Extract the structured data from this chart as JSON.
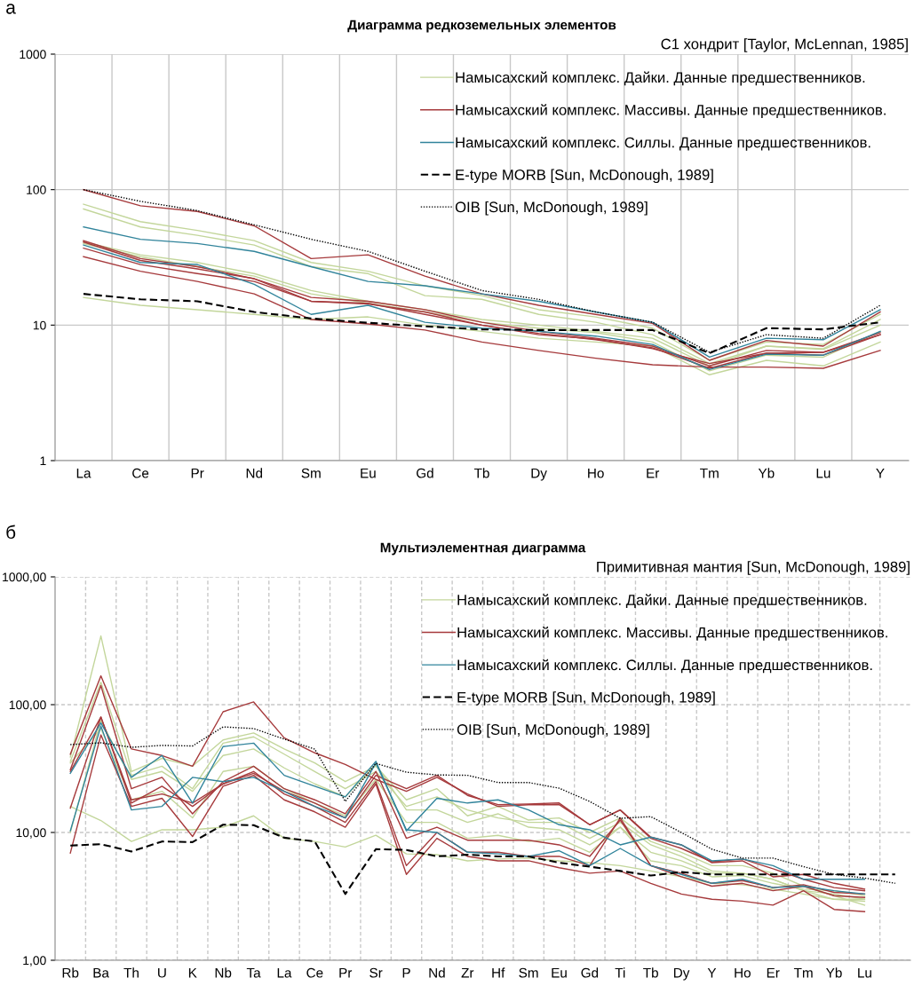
{
  "chart_data": [
    {
      "type": "line",
      "title": "Диаграмма редкоземельных элементов",
      "subtitle": "С1 хондрит [Taylor, McLennan, 1985]",
      "annotations": [
        "а"
      ],
      "categories": [
        "La",
        "Ce",
        "Pr",
        "Nd",
        "Sm",
        "Eu",
        "Gd",
        "Tb",
        "Dy",
        "Ho",
        "Er",
        "Tm",
        "Yb",
        "Lu",
        "Y"
      ],
      "log": true,
      "ylim": [
        1,
        1000
      ],
      "yticks": [
        1,
        10,
        100,
        1000
      ],
      "grid": true,
      "legend": "top right",
      "series": [
        {
          "name": "Намысахский комплекс. Дайки. Данные предшественников.",
          "color": "#c3d69b",
          "values": [
            78,
            58,
            50,
            42,
            29,
            25,
            19.5,
            16.5,
            13,
            11.5,
            9.5,
            5.5,
            7.5,
            7.2,
            12
          ]
        },
        {
          "color": "#c3d69b",
          "values": [
            72,
            53,
            46,
            39,
            27,
            24,
            16.5,
            15.5,
            12,
            10.5,
            8.5,
            5.2,
            7,
            6.7,
            11
          ]
        },
        {
          "color": "#c3d69b",
          "values": [
            41,
            33,
            29,
            24,
            18,
            15,
            13,
            11,
            10,
            9,
            8,
            5,
            7,
            6.6,
            10
          ]
        },
        {
          "color": "#c3d69b",
          "values": [
            16,
            14,
            13,
            12,
            11,
            11.5,
            10,
            9,
            8,
            7.5,
            7,
            4.3,
            5.5,
            5,
            7.5
          ]
        },
        {
          "color": "#c3d69b",
          "values": [
            40,
            32,
            27,
            23,
            17,
            14.5,
            12.5,
            10.5,
            9.5,
            8.8,
            7.5,
            4.6,
            6,
            5.8,
            9
          ]
        },
        {
          "name": "Намысахский комплекс. Массивы. Данные предшественников.",
          "color": "#a63a3c",
          "values": [
            100,
            76,
            69,
            54,
            31,
            33,
            23,
            17,
            14,
            12,
            10.3,
            5.5,
            7.7,
            7,
            12.5
          ]
        },
        {
          "color": "#a63a3c",
          "values": [
            42,
            31,
            27,
            22,
            16,
            15,
            13,
            10.5,
            9,
            8,
            7,
            5,
            6.5,
            6.3,
            8.5
          ]
        },
        {
          "color": "#a63a3c",
          "values": [
            37,
            28,
            24,
            21,
            15,
            14.5,
            12,
            10,
            8.7,
            7.8,
            6.8,
            4.8,
            6.2,
            6,
            8.5
          ]
        },
        {
          "color": "#a63a3c",
          "values": [
            32,
            25,
            21,
            17,
            11,
            10.2,
            9.2,
            7.5,
            6.5,
            5.7,
            5.1,
            4.9,
            4.9,
            4.8,
            6.5
          ]
        },
        {
          "color": "#a63a3c",
          "values": [
            41,
            30,
            26,
            22,
            15,
            14.3,
            12.5,
            10,
            8.5,
            7.9,
            6.7,
            5.2,
            6.2,
            6.3,
            8.8
          ]
        },
        {
          "name": "Намысахский комплекс. Силлы. Данные предшественников.",
          "color": "#31849b",
          "values": [
            53,
            43,
            40,
            35,
            27,
            21,
            19.5,
            17,
            15,
            12.5,
            10.5,
            5.8,
            8,
            7.8,
            13
          ]
        },
        {
          "color": "#31849b",
          "values": [
            39,
            29,
            28,
            20,
            12,
            14,
            10.5,
            9.5,
            9,
            8.3,
            7.2,
            4.7,
            6.1,
            6,
            9
          ]
        },
        {
          "name": "E-type MORB [Sun, McDonough, 1989]",
          "color": "#000000",
          "line_style": "dashed",
          "values": [
            17,
            15.5,
            15,
            12.5,
            11.2,
            10.4,
            9.8,
            9.3,
            9.2,
            9.2,
            9.2,
            6.2,
            9.5,
            9.3,
            10.5
          ]
        },
        {
          "name": "OIB [Sun, McDonough, 1989]",
          "color": "#000000",
          "line_style": "dotted",
          "values": [
            100,
            82,
            70,
            55,
            43,
            35,
            25,
            18,
            15.5,
            12.5,
            10.5,
            6.3,
            8.5,
            8,
            14
          ]
        }
      ]
    },
    {
      "type": "line",
      "title": "Мультиэлементная диаграмма",
      "subtitle": "Примитивная мантия [Sun, McDonough, 1989]",
      "annotations": [
        "б"
      ],
      "categories": [
        "Rb",
        "Ba",
        "Th",
        "U",
        "K",
        "Nb",
        "Ta",
        "La",
        "Ce",
        "Pr",
        "Sr",
        "P",
        "Nd",
        "Zr",
        "Hf",
        "Sm",
        "Eu",
        "Gd",
        "Ti",
        "Tb",
        "Dy",
        "Y",
        "Ho",
        "Er",
        "Tm",
        "Yb",
        "Lu",
        null
      ],
      "log": true,
      "ylim": [
        1,
        1000
      ],
      "yticks": [
        {
          "value": 1,
          "label": "1,00"
        },
        {
          "value": 10,
          "label": "10,00"
        },
        {
          "value": 100,
          "label": "100,00"
        },
        {
          "value": 1000,
          "label": "1000,00"
        }
      ],
      "grid": true,
      "legend": "top right",
      "series": [
        {
          "name": "Намысахский комплекс. Дайки. Данные предшественников.",
          "color": "#c3d69b",
          "values": [
            39,
            345,
            30,
            38,
            33,
            53,
            60,
            45,
            35,
            25,
            33,
            18,
            22,
            13.5,
            16,
            12.5,
            13,
            10,
            13,
            8.5,
            7,
            5.5,
            5.5,
            4.8,
            3.8,
            3.2,
            2.7,
            null
          ]
        },
        {
          "color": "#c3d69b",
          "values": [
            36,
            150,
            28,
            33,
            22,
            50,
            56,
            41,
            30,
            22,
            30,
            16,
            19,
            15,
            13,
            12,
            12,
            9,
            12,
            8,
            6.5,
            5,
            4.8,
            4.3,
            3.5,
            3,
            3,
            null
          ]
        },
        {
          "color": "#c3d69b",
          "values": [
            16,
            12.4,
            8.5,
            10.5,
            10.5,
            11,
            13.5,
            9,
            8.5,
            7.7,
            9.5,
            6.8,
            6.7,
            6,
            6.2,
            6.3,
            6,
            5.8,
            5.5,
            5,
            4.5,
            4,
            3.9,
            3.6,
            3.3,
            3,
            2.9,
            null
          ]
        },
        {
          "color": "#c3d69b",
          "values": [
            35,
            65,
            18,
            21,
            13,
            30,
            33,
            22,
            17,
            13.5,
            26,
            12,
            12,
            9,
            9.5,
            8.5,
            9,
            7,
            11,
            6,
            5.5,
            4.5,
            4.6,
            4,
            3.6,
            3.5,
            3.2,
            null
          ]
        },
        {
          "color": "#c3d69b",
          "values": [
            10,
            75,
            26,
            30,
            21,
            40,
            45,
            32,
            24,
            19,
            34,
            15,
            15,
            12,
            14,
            11,
            10.5,
            8,
            11,
            7,
            6,
            4.8,
            4.8,
            4.3,
            3.5,
            3.3,
            3,
            null
          ]
        },
        {
          "name": "Намысахский комплекс. Массивы. Данные предшественников.",
          "color": "#a63a3c",
          "values": [
            41,
            168,
            45,
            40,
            33,
            88,
            105,
            55,
            42,
            34,
            26,
            21,
            27,
            20,
            16,
            16.5,
            16.5,
            11.5,
            15,
            9.2,
            8,
            5.8,
            6,
            4.5,
            4.7,
            4,
            3.6,
            null
          ]
        },
        {
          "color": "#a63a3c",
          "values": [
            31,
            141,
            22,
            27,
            14,
            25,
            33,
            22,
            18,
            14,
            30,
            9,
            11,
            8.7,
            8.7,
            8.7,
            8,
            6.5,
            12.5,
            5.5,
            4.8,
            4,
            4.2,
            3.7,
            3.9,
            3.4,
            3.3,
            null
          ]
        },
        {
          "color": "#a63a3c",
          "values": [
            15.5,
            80,
            18,
            20,
            17,
            24,
            30,
            20,
            16,
            12,
            25,
            5.5,
            10,
            7,
            7,
            6.5,
            6.5,
            5.5,
            13,
            5.5,
            4.5,
            3.8,
            4,
            3.5,
            3.8,
            3.2,
            3.1,
            null
          ]
        },
        {
          "color": "#a63a3c",
          "values": [
            6.9,
            58,
            16,
            18.5,
            9.3,
            23,
            28,
            18,
            14.5,
            11,
            24,
            4.7,
            9,
            6.5,
            6,
            6,
            5.3,
            4.8,
            5,
            4,
            3.3,
            3,
            2.9,
            2.7,
            3.5,
            2.5,
            2.4,
            null
          ]
        },
        {
          "color": "#a63a3c",
          "values": [
            30,
            80,
            17,
            23,
            16,
            24,
            29,
            21,
            17,
            13,
            28,
            22,
            28,
            19.5,
            16.5,
            16.7,
            17,
            11.5,
            15,
            9,
            7.5,
            5.9,
            6.2,
            5.2,
            4.3,
            3.7,
            3.5,
            null
          ]
        },
        {
          "name": "Намысахский комплекс. Силлы. Данные предшественников.",
          "color": "#31849b",
          "values": [
            29,
            72,
            27,
            40,
            17,
            47,
            50,
            28,
            23,
            19,
            36,
            10.3,
            18.5,
            17,
            18,
            15,
            11.5,
            10.5,
            8,
            9.2,
            8,
            6,
            6.2,
            5.5,
            4.3,
            4.3,
            4.3,
            null
          ]
        },
        {
          "color": "#31849b",
          "values": [
            10.3,
            68,
            15,
            16,
            27,
            25,
            27,
            21,
            16,
            13,
            35,
            10.5,
            10,
            7,
            6.8,
            6.5,
            7.2,
            5.5,
            7.5,
            5.5,
            4.7,
            4,
            4.3,
            3.7,
            3.8,
            3.5,
            3.3,
            null
          ]
        },
        {
          "name": "E-type MORB [Sun, McDonough, 1989]",
          "color": "#000000",
          "line_style": "dashed",
          "values": [
            7.9,
            8.1,
            7.1,
            8.5,
            8.4,
            11.5,
            11.4,
            9.1,
            8.5,
            3.3,
            7.4,
            7.3,
            6.5,
            6.7,
            6.5,
            6.5,
            5.8,
            5.4,
            5,
            4.6,
            4.9,
            4.7,
            4.7,
            4.7,
            4.7,
            4.7,
            4.7,
            4.7
          ]
        },
        {
          "name": "OIB [Sun, McDonough, 1989]",
          "color": "#000000",
          "line_style": "dotted",
          "values": [
            48.7,
            50.3,
            46.4,
            48,
            47.5,
            67,
            65,
            53.8,
            44.9,
            17.5,
            34.7,
            29.6,
            28.2,
            28,
            24.6,
            24.6,
            22.2,
            17.5,
            12.9,
            13.3,
            10,
            7.4,
            6.3,
            6.3,
            5.4,
            4.7,
            4.4,
            4
          ]
        }
      ]
    }
  ]
}
